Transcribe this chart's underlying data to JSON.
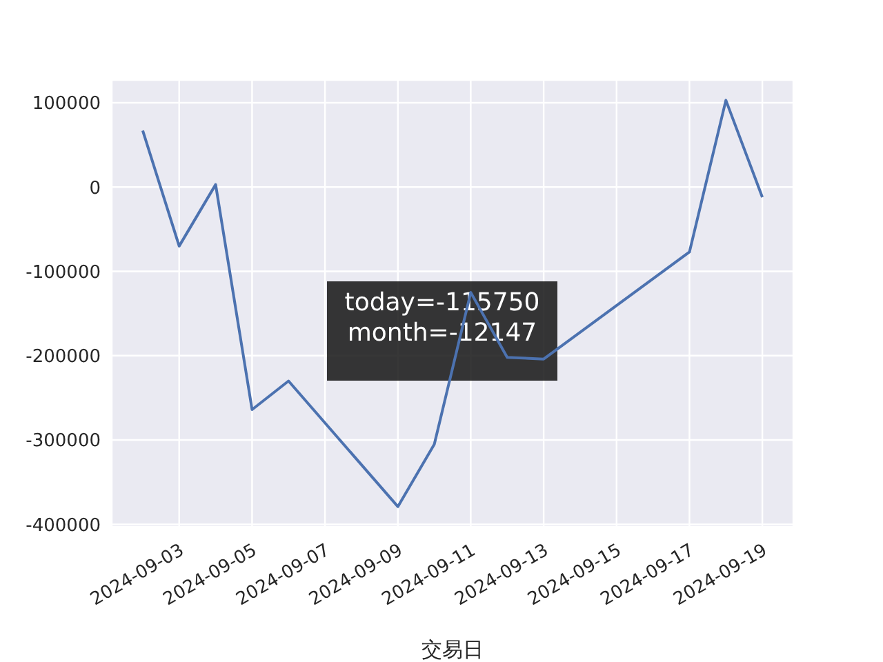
{
  "chart_data": {
    "type": "line",
    "xlabel": "交易日",
    "x": [
      "2024-09-02",
      "2024-09-03",
      "2024-09-04",
      "2024-09-05",
      "2024-09-06",
      "2024-09-09",
      "2024-09-10",
      "2024-09-11",
      "2024-09-12",
      "2024-09-13",
      "2024-09-17",
      "2024-09-18",
      "2024-09-19"
    ],
    "values": [
      67000,
      -70000,
      3000,
      -264000,
      -230000,
      -379000,
      -305000,
      -125000,
      -202000,
      -204000,
      -77000,
      103000,
      -12000
    ],
    "color": "#4c72b0",
    "xlim": [
      "2024-09-01T03:36",
      "2024-09-19T20:24"
    ],
    "xticks": [
      "2024-09-03",
      "2024-09-05",
      "2024-09-07",
      "2024-09-09",
      "2024-09-11",
      "2024-09-13",
      "2024-09-15",
      "2024-09-17",
      "2024-09-19"
    ],
    "ylim": [
      -403000,
      127000
    ],
    "yticks": [
      -400000,
      -300000,
      -200000,
      -100000,
      0,
      100000
    ],
    "grid": true,
    "annotations": [
      "today=-115750",
      "month=-12147"
    ]
  }
}
